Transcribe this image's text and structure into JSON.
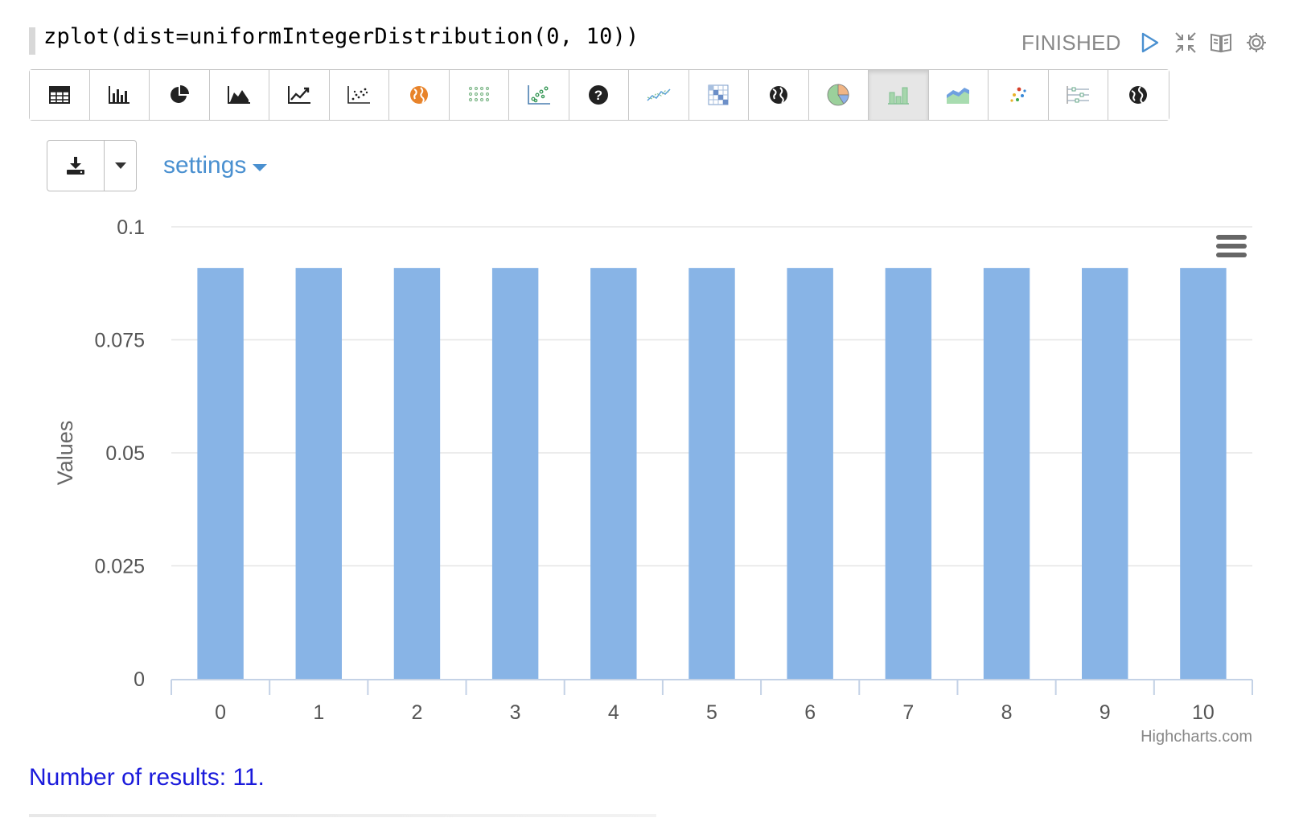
{
  "paragraph": {
    "code": "zplot(dist=uniformIntegerDistribution(0, 10))",
    "status": "FINISHED"
  },
  "top_icons": [
    "play-icon",
    "collapse-icon",
    "book-icon",
    "gear-icon"
  ],
  "toolbar": {
    "buttons": [
      {
        "name": "table-icon"
      },
      {
        "name": "bar-chart-icon"
      },
      {
        "name": "pie-chart-icon"
      },
      {
        "name": "area-chart-icon"
      },
      {
        "name": "line-chart-icon"
      },
      {
        "name": "scatter-chart-icon"
      },
      {
        "name": "orange-globe-icon"
      },
      {
        "name": "dot-grid-icon"
      },
      {
        "name": "color-scatter-icon"
      },
      {
        "name": "question-icon"
      },
      {
        "name": "spark-line-icon"
      },
      {
        "name": "heatmap-icon"
      },
      {
        "name": "globe-icon"
      },
      {
        "name": "color-pie-icon"
      },
      {
        "name": "green-bar-icon",
        "active": true
      },
      {
        "name": "color-area-icon"
      },
      {
        "name": "color-dots-icon"
      },
      {
        "name": "sliders-icon"
      },
      {
        "name": "world-icon"
      }
    ]
  },
  "controls": {
    "settings_label": "settings"
  },
  "chart_data": {
    "type": "bar",
    "categories": [
      "0",
      "1",
      "2",
      "3",
      "4",
      "5",
      "6",
      "7",
      "8",
      "9",
      "10"
    ],
    "values": [
      0.0909,
      0.0909,
      0.0909,
      0.0909,
      0.0909,
      0.0909,
      0.0909,
      0.0909,
      0.0909,
      0.0909,
      0.0909
    ],
    "ylabel": "Values",
    "ylim": [
      0,
      0.1
    ],
    "yticks": [
      "0",
      "0.025",
      "0.05",
      "0.075",
      "0.1"
    ],
    "bar_color": "#88b4e6",
    "grid": true,
    "credits": "Highcharts.com"
  },
  "footer": {
    "results": "Number of results: 11."
  }
}
